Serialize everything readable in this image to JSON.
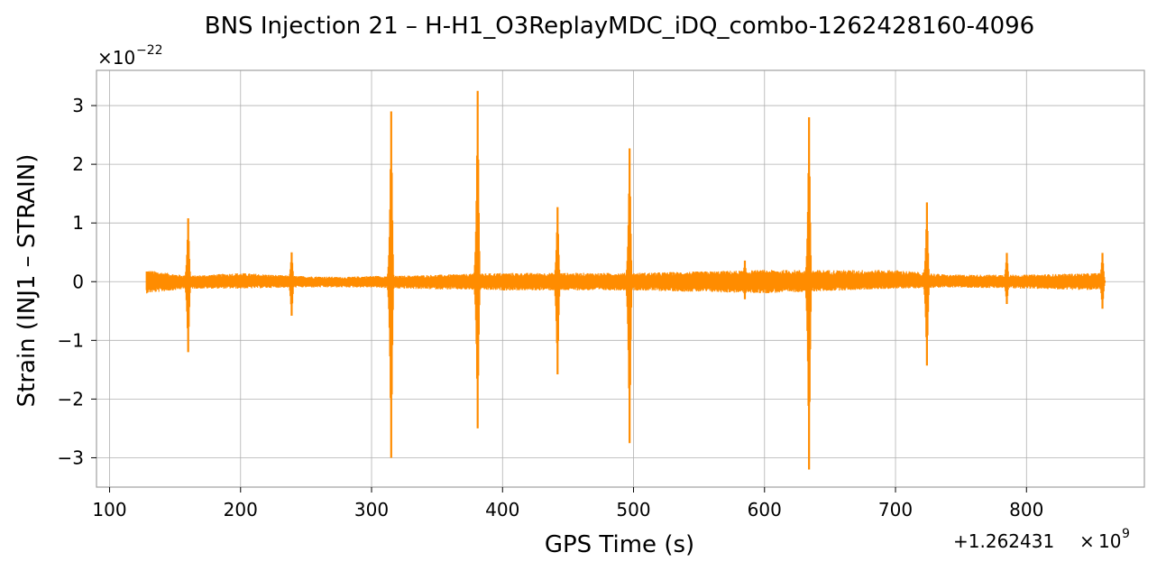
{
  "chart_data": {
    "type": "line",
    "title": "BNS Injection 21 – H-H1_O3ReplayMDC_iDQ_combo-1262428160-4096",
    "xlabel": "GPS Time (s)",
    "ylabel": "Strain (INJ1 – STRAIN)",
    "x_offset_base": "+1.262431",
    "x_offset_exp": "9",
    "y_scale_base": "×10",
    "y_scale_exp": "−22",
    "xlim": [
      90,
      890
    ],
    "ylim": [
      -3.5,
      3.6
    ],
    "xticks": [
      100,
      200,
      300,
      400,
      500,
      600,
      700,
      800
    ],
    "xtick_labels": [
      "100",
      "200",
      "300",
      "400",
      "500",
      "600",
      "700",
      "800"
    ],
    "yticks": [
      -3,
      -2,
      -1,
      0,
      1,
      2,
      3
    ],
    "ytick_labels": [
      "−3",
      "−2",
      "−1",
      "0",
      "1",
      "2",
      "3"
    ],
    "grid": true,
    "color": "#ff8c00",
    "series": [
      {
        "baseline_envelope": {
          "x": [
            128,
            160,
            200,
            240,
            280,
            300,
            320,
            400,
            500,
            560,
            600,
            660,
            700,
            740,
            800,
            858
          ],
          "upper": [
            0.2,
            0.1,
            0.15,
            0.1,
            0.08,
            0.1,
            0.1,
            0.15,
            0.15,
            0.18,
            0.2,
            0.2,
            0.2,
            0.12,
            0.12,
            0.15
          ],
          "lower": [
            -0.2,
            -0.12,
            -0.12,
            -0.1,
            -0.1,
            -0.1,
            -0.12,
            -0.15,
            -0.15,
            -0.18,
            -0.2,
            -0.15,
            -0.12,
            -0.1,
            -0.12,
            -0.15
          ]
        },
        "spikes": [
          {
            "x": 160,
            "max": 1.08,
            "min": -1.2
          },
          {
            "x": 239,
            "max": 0.5,
            "min": -0.58
          },
          {
            "x": 315,
            "max": 2.9,
            "min": -3.0
          },
          {
            "x": 381,
            "max": 3.25,
            "min": -2.5
          },
          {
            "x": 442,
            "max": 1.27,
            "min": -1.58
          },
          {
            "x": 497,
            "max": 2.27,
            "min": -2.75
          },
          {
            "x": 585,
            "max": 0.36,
            "min": -0.3
          },
          {
            "x": 634,
            "max": 2.8,
            "min": -3.2
          },
          {
            "x": 724,
            "max": 1.35,
            "min": -1.43
          },
          {
            "x": 785,
            "max": 0.49,
            "min": -0.38
          },
          {
            "x": 858,
            "max": 0.49,
            "min": -0.46
          }
        ]
      }
    ]
  }
}
